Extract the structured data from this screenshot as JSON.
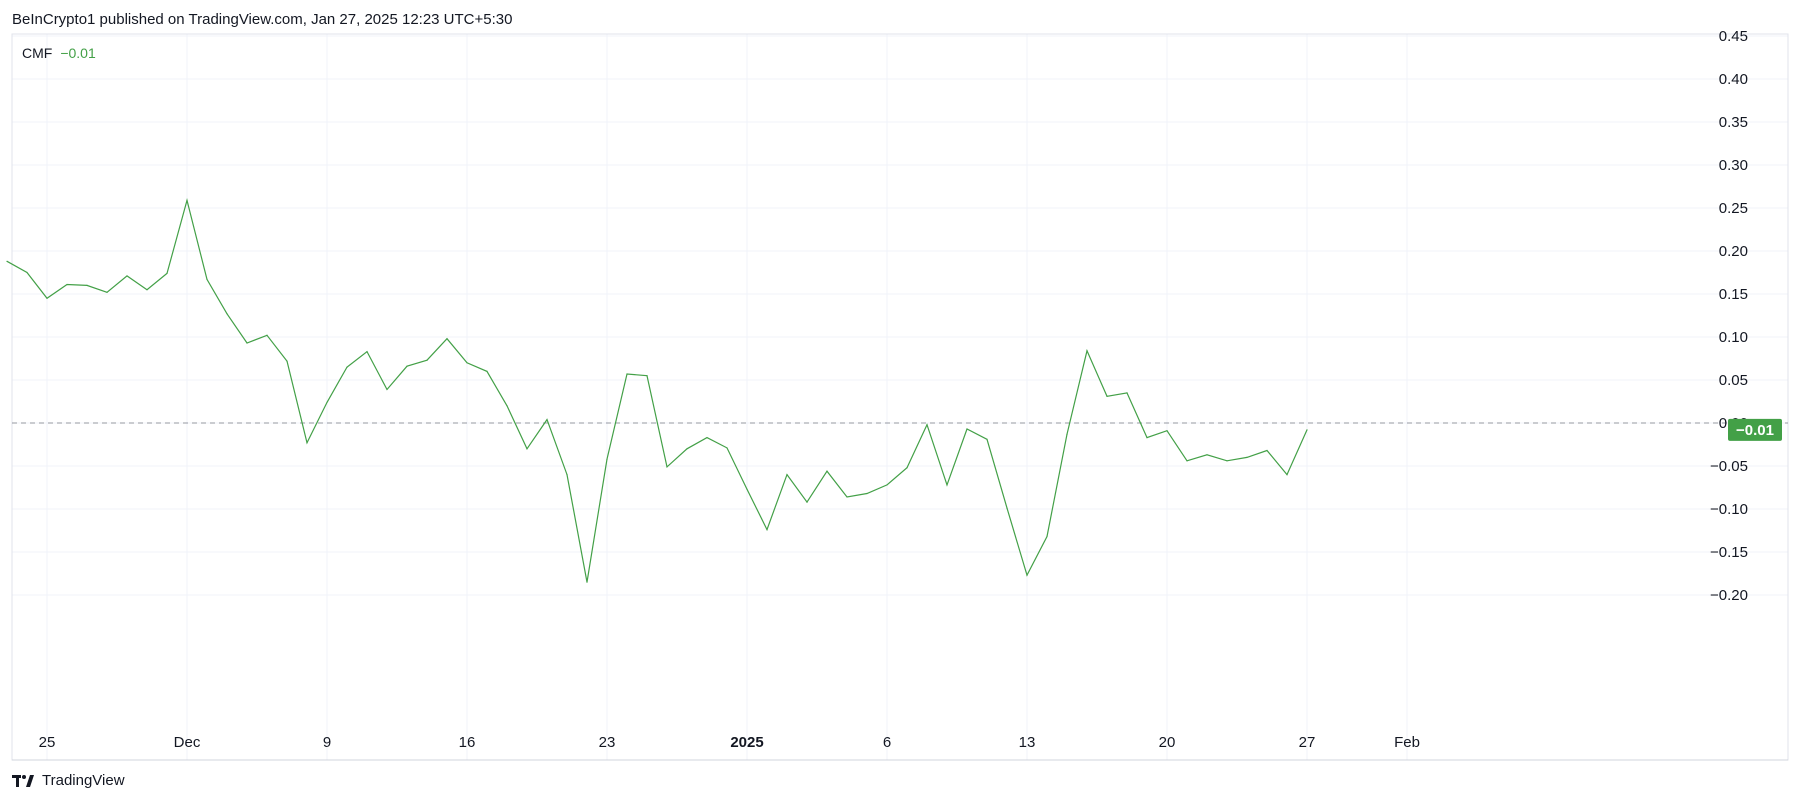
{
  "header": {
    "published": "BeInCrypto1 published on TradingView.com, Jan 27, 2025 12:23 UTC+5:30"
  },
  "legend": {
    "name": "CMF",
    "value": "−0.01"
  },
  "price_badge": "−0.01",
  "footer": {
    "brand": "TradingView",
    "logo_icon": "tradingview-logo-icon"
  },
  "colors": {
    "line": "#43a047",
    "grid": "#f0f3fa",
    "zero_line": "#9598a1",
    "badge": "#43a047"
  },
  "chart_data": {
    "type": "line",
    "title": "",
    "xlabel": "",
    "ylabel": "",
    "ylim": [
      -0.25,
      0.45
    ],
    "y_ticks": [
      "0.45",
      "0.40",
      "0.35",
      "0.30",
      "0.25",
      "0.20",
      "0.15",
      "0.10",
      "0.05",
      "0.00",
      "−0.05",
      "−0.10",
      "−0.15",
      "−0.20"
    ],
    "x_ticks": [
      {
        "label": "25",
        "date": "2024-11-25"
      },
      {
        "label": "Dec",
        "date": "2024-12-02"
      },
      {
        "label": "9",
        "date": "2024-12-09"
      },
      {
        "label": "16",
        "date": "2024-12-16"
      },
      {
        "label": "23",
        "date": "2024-12-23"
      },
      {
        "label": "2025",
        "date": "2024-12-30",
        "bold": true
      },
      {
        "label": "6",
        "date": "2025-01-06"
      },
      {
        "label": "13",
        "date": "2025-01-13"
      },
      {
        "label": "20",
        "date": "2025-01-20"
      },
      {
        "label": "27",
        "date": "2025-01-27"
      },
      {
        "label": "Feb",
        "date": "2025-02-01"
      }
    ],
    "reference_line": {
      "y": 0.0,
      "style": "dashed"
    },
    "grid": true,
    "series": [
      {
        "name": "CMF",
        "points": [
          [
            "2024-11-23",
            0.188
          ],
          [
            "2024-11-24",
            0.175
          ],
          [
            "2024-11-25",
            0.145
          ],
          [
            "2024-11-26",
            0.161
          ],
          [
            "2024-11-27",
            0.16
          ],
          [
            "2024-11-28",
            0.152
          ],
          [
            "2024-11-29",
            0.171
          ],
          [
            "2024-11-30",
            0.155
          ],
          [
            "2024-12-01",
            0.174
          ],
          [
            "2024-12-02",
            0.259
          ],
          [
            "2024-12-03",
            0.167
          ],
          [
            "2024-12-04",
            0.127
          ],
          [
            "2024-12-05",
            0.093
          ],
          [
            "2024-12-06",
            0.102
          ],
          [
            "2024-12-07",
            0.072
          ],
          [
            "2024-12-08",
            -0.023
          ],
          [
            "2024-12-09",
            0.024
          ],
          [
            "2024-12-10",
            0.065
          ],
          [
            "2024-12-11",
            0.083
          ],
          [
            "2024-12-12",
            0.039
          ],
          [
            "2024-12-13",
            0.066
          ],
          [
            "2024-12-14",
            0.073
          ],
          [
            "2024-12-15",
            0.098
          ],
          [
            "2024-12-16",
            0.07
          ],
          [
            "2024-12-17",
            0.06
          ],
          [
            "2024-12-18",
            0.02
          ],
          [
            "2024-12-19",
            -0.03
          ],
          [
            "2024-12-20",
            0.004
          ],
          [
            "2024-12-21",
            -0.06
          ],
          [
            "2024-12-22",
            -0.185
          ],
          [
            "2024-12-23",
            -0.042
          ],
          [
            "2024-12-24",
            0.057
          ],
          [
            "2024-12-25",
            0.055
          ],
          [
            "2024-12-26",
            -0.051
          ],
          [
            "2024-12-27",
            -0.03
          ],
          [
            "2024-12-28",
            -0.017
          ],
          [
            "2024-12-29",
            -0.029
          ],
          [
            "2024-12-30",
            -0.077
          ],
          [
            "2024-12-31",
            -0.124
          ],
          [
            "2025-01-01",
            -0.06
          ],
          [
            "2025-01-02",
            -0.092
          ],
          [
            "2025-01-03",
            -0.056
          ],
          [
            "2025-01-04",
            -0.086
          ],
          [
            "2025-01-05",
            -0.082
          ],
          [
            "2025-01-06",
            -0.072
          ],
          [
            "2025-01-07",
            -0.052
          ],
          [
            "2025-01-08",
            -0.002
          ],
          [
            "2025-01-09",
            -0.072
          ],
          [
            "2025-01-10",
            -0.007
          ],
          [
            "2025-01-11",
            -0.019
          ],
          [
            "2025-01-12",
            -0.099
          ],
          [
            "2025-01-13",
            -0.177
          ],
          [
            "2025-01-14",
            -0.132
          ],
          [
            "2025-01-15",
            -0.013
          ],
          [
            "2025-01-16",
            0.084
          ],
          [
            "2025-01-17",
            0.031
          ],
          [
            "2025-01-18",
            0.035
          ],
          [
            "2025-01-19",
            -0.017
          ],
          [
            "2025-01-20",
            -0.009
          ],
          [
            "2025-01-21",
            -0.044
          ],
          [
            "2025-01-22",
            -0.037
          ],
          [
            "2025-01-23",
            -0.044
          ],
          [
            "2025-01-24",
            -0.04
          ],
          [
            "2025-01-25",
            -0.032
          ],
          [
            "2025-01-26",
            -0.06
          ],
          [
            "2025-01-27",
            -0.008
          ]
        ]
      }
    ]
  }
}
